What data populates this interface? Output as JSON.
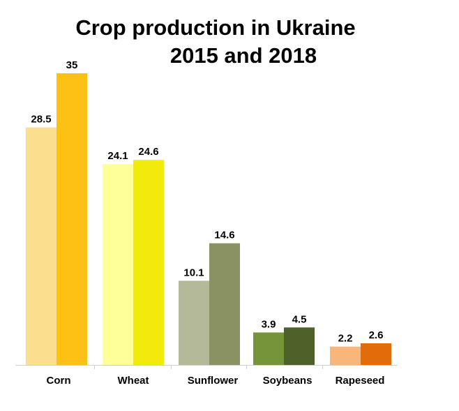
{
  "chart_data": {
    "type": "bar",
    "title_line1": "Crop production in Ukraine",
    "title_line2": "2015 and 2018",
    "categories": [
      "Corn",
      "Wheat",
      "Sunflower",
      "Soybeans",
      "Rapeseed"
    ],
    "series": [
      {
        "values": [
          28.5,
          24.1,
          10.1,
          3.9,
          2.2
        ]
      },
      {
        "values": [
          35,
          24.6,
          14.6,
          4.5,
          2.6
        ]
      }
    ],
    "value_labels": [
      [
        "28.5",
        "24.1",
        "10.1",
        "3.9",
        "2.2"
      ],
      [
        "35",
        "24.6",
        "14.6",
        "4.5",
        "2.6"
      ]
    ],
    "colors": [
      [
        "#FCDF8E",
        "#FDC116"
      ],
      [
        "#FFFF99",
        "#F2EA0A"
      ],
      [
        "#B4B999",
        "#8A9163"
      ],
      [
        "#76943A",
        "#4E6128"
      ],
      [
        "#F9B67A",
        "#E36C0A"
      ]
    ],
    "ylim": [
      0,
      36
    ],
    "grid": false,
    "legend": "none"
  }
}
